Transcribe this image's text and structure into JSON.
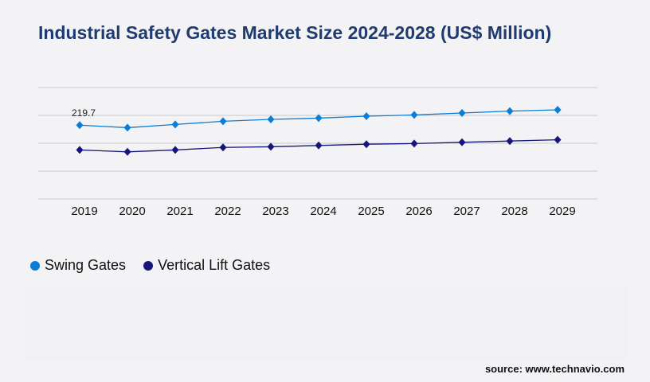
{
  "chart_data": {
    "type": "line",
    "title": "Industrial Safety Gates Market Size 2024-2028 (US$ Million)",
    "categories": [
      "2019",
      "2020",
      "2021",
      "2022",
      "2023",
      "2024",
      "2025",
      "2026",
      "2027",
      "2028",
      "2029"
    ],
    "series": [
      {
        "name": "Swing Gates",
        "color": "#0a7dd6",
        "values": [
          219.7,
          212.1,
          221.6,
          231.1,
          236.7,
          240.5,
          246.2,
          250.0,
          255.7,
          261.4,
          265.2
        ]
      },
      {
        "name": "Vertical Lift Gates",
        "color": "#16167a",
        "values": [
          145.8,
          140.2,
          145.8,
          153.4,
          155.3,
          159.1,
          162.9,
          164.8,
          168.6,
          172.4,
          176.1
        ]
      }
    ],
    "data_labels": [
      {
        "series": "Swing Gates",
        "category": "2019",
        "text": "219.7"
      }
    ],
    "ylim": [
      0,
      331.5
    ],
    "grid": true,
    "marker": "diamond",
    "legend_placement": "bottom-left"
  },
  "source": "source: www.technavio.com"
}
